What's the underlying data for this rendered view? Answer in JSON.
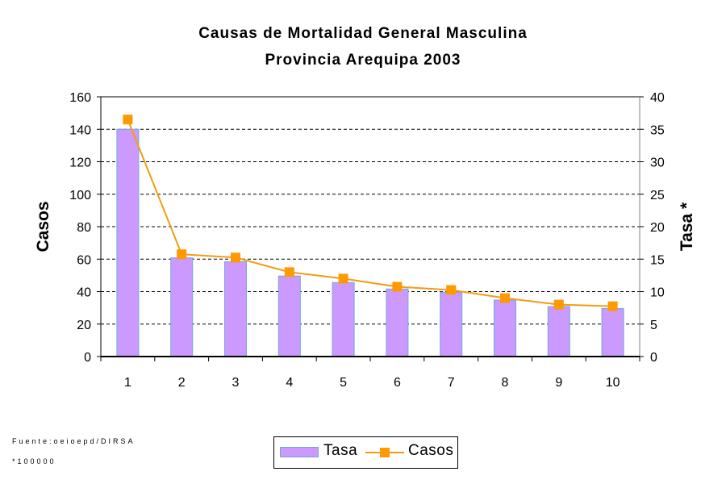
{
  "chart_data": {
    "type": "bar",
    "title": "Causas de Mortalidad General Masculina",
    "subtitle": "Provincia Arequipa 2003",
    "categories": [
      "1",
      "2",
      "3",
      "4",
      "5",
      "6",
      "7",
      "8",
      "9",
      "10"
    ],
    "series": [
      {
        "name": "Tasa",
        "type": "bar",
        "axis": "right",
        "color": "#cc99ff",
        "edge_color": "#6fa8dc",
        "values": [
          35.0,
          15.2,
          14.6,
          12.4,
          11.4,
          10.4,
          9.9,
          8.7,
          7.7,
          7.4
        ]
      },
      {
        "name": "Casos",
        "type": "line",
        "axis": "left",
        "color": "#f39c12",
        "marker": "square",
        "marker_color": "#ff9900",
        "values": [
          146,
          63,
          61,
          52,
          48,
          43,
          41,
          36,
          32,
          31
        ]
      }
    ],
    "ylabel": "Casos",
    "ylim": [
      0,
      160
    ],
    "yticks": [
      "0",
      "20",
      "40",
      "60",
      "80",
      "100",
      "120",
      "140",
      "160"
    ],
    "y2label": "Tasa *",
    "y2lim": [
      0,
      40
    ],
    "y2ticks": [
      "0",
      "5",
      "10",
      "15",
      "20",
      "25",
      "30",
      "35",
      "40"
    ],
    "xlabel": "",
    "grid": "horizontal dashed",
    "legend": {
      "placement": "bottom-center",
      "entries": [
        "Tasa",
        "Casos"
      ]
    }
  },
  "footnotes": {
    "source": "Fuente:oeioepd/DIRSA",
    "rate_note": "*100000"
  }
}
